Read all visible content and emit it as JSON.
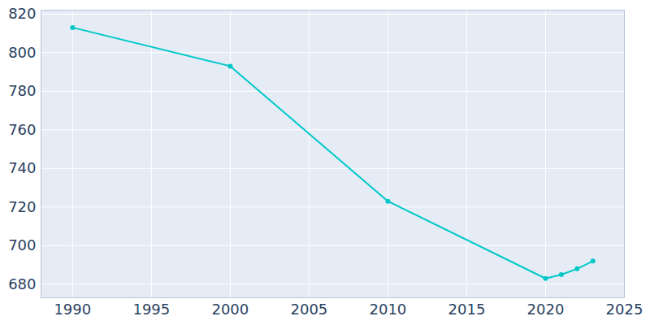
{
  "chart_data": {
    "type": "line",
    "x": [
      1990,
      2000,
      2010,
      2020,
      2021,
      2022,
      2023
    ],
    "values": [
      813,
      793,
      723,
      683,
      685,
      688,
      692
    ],
    "color": "#00c8c8",
    "marker": "circle",
    "xlim": [
      1988,
      2025
    ],
    "xticks": [
      1990,
      1995,
      2000,
      2005,
      2010,
      2015,
      2020,
      2025
    ],
    "ylim": [
      673,
      822
    ],
    "yticks": [
      680,
      700,
      720,
      740,
      760,
      780,
      800,
      820
    ],
    "grid": true
  }
}
